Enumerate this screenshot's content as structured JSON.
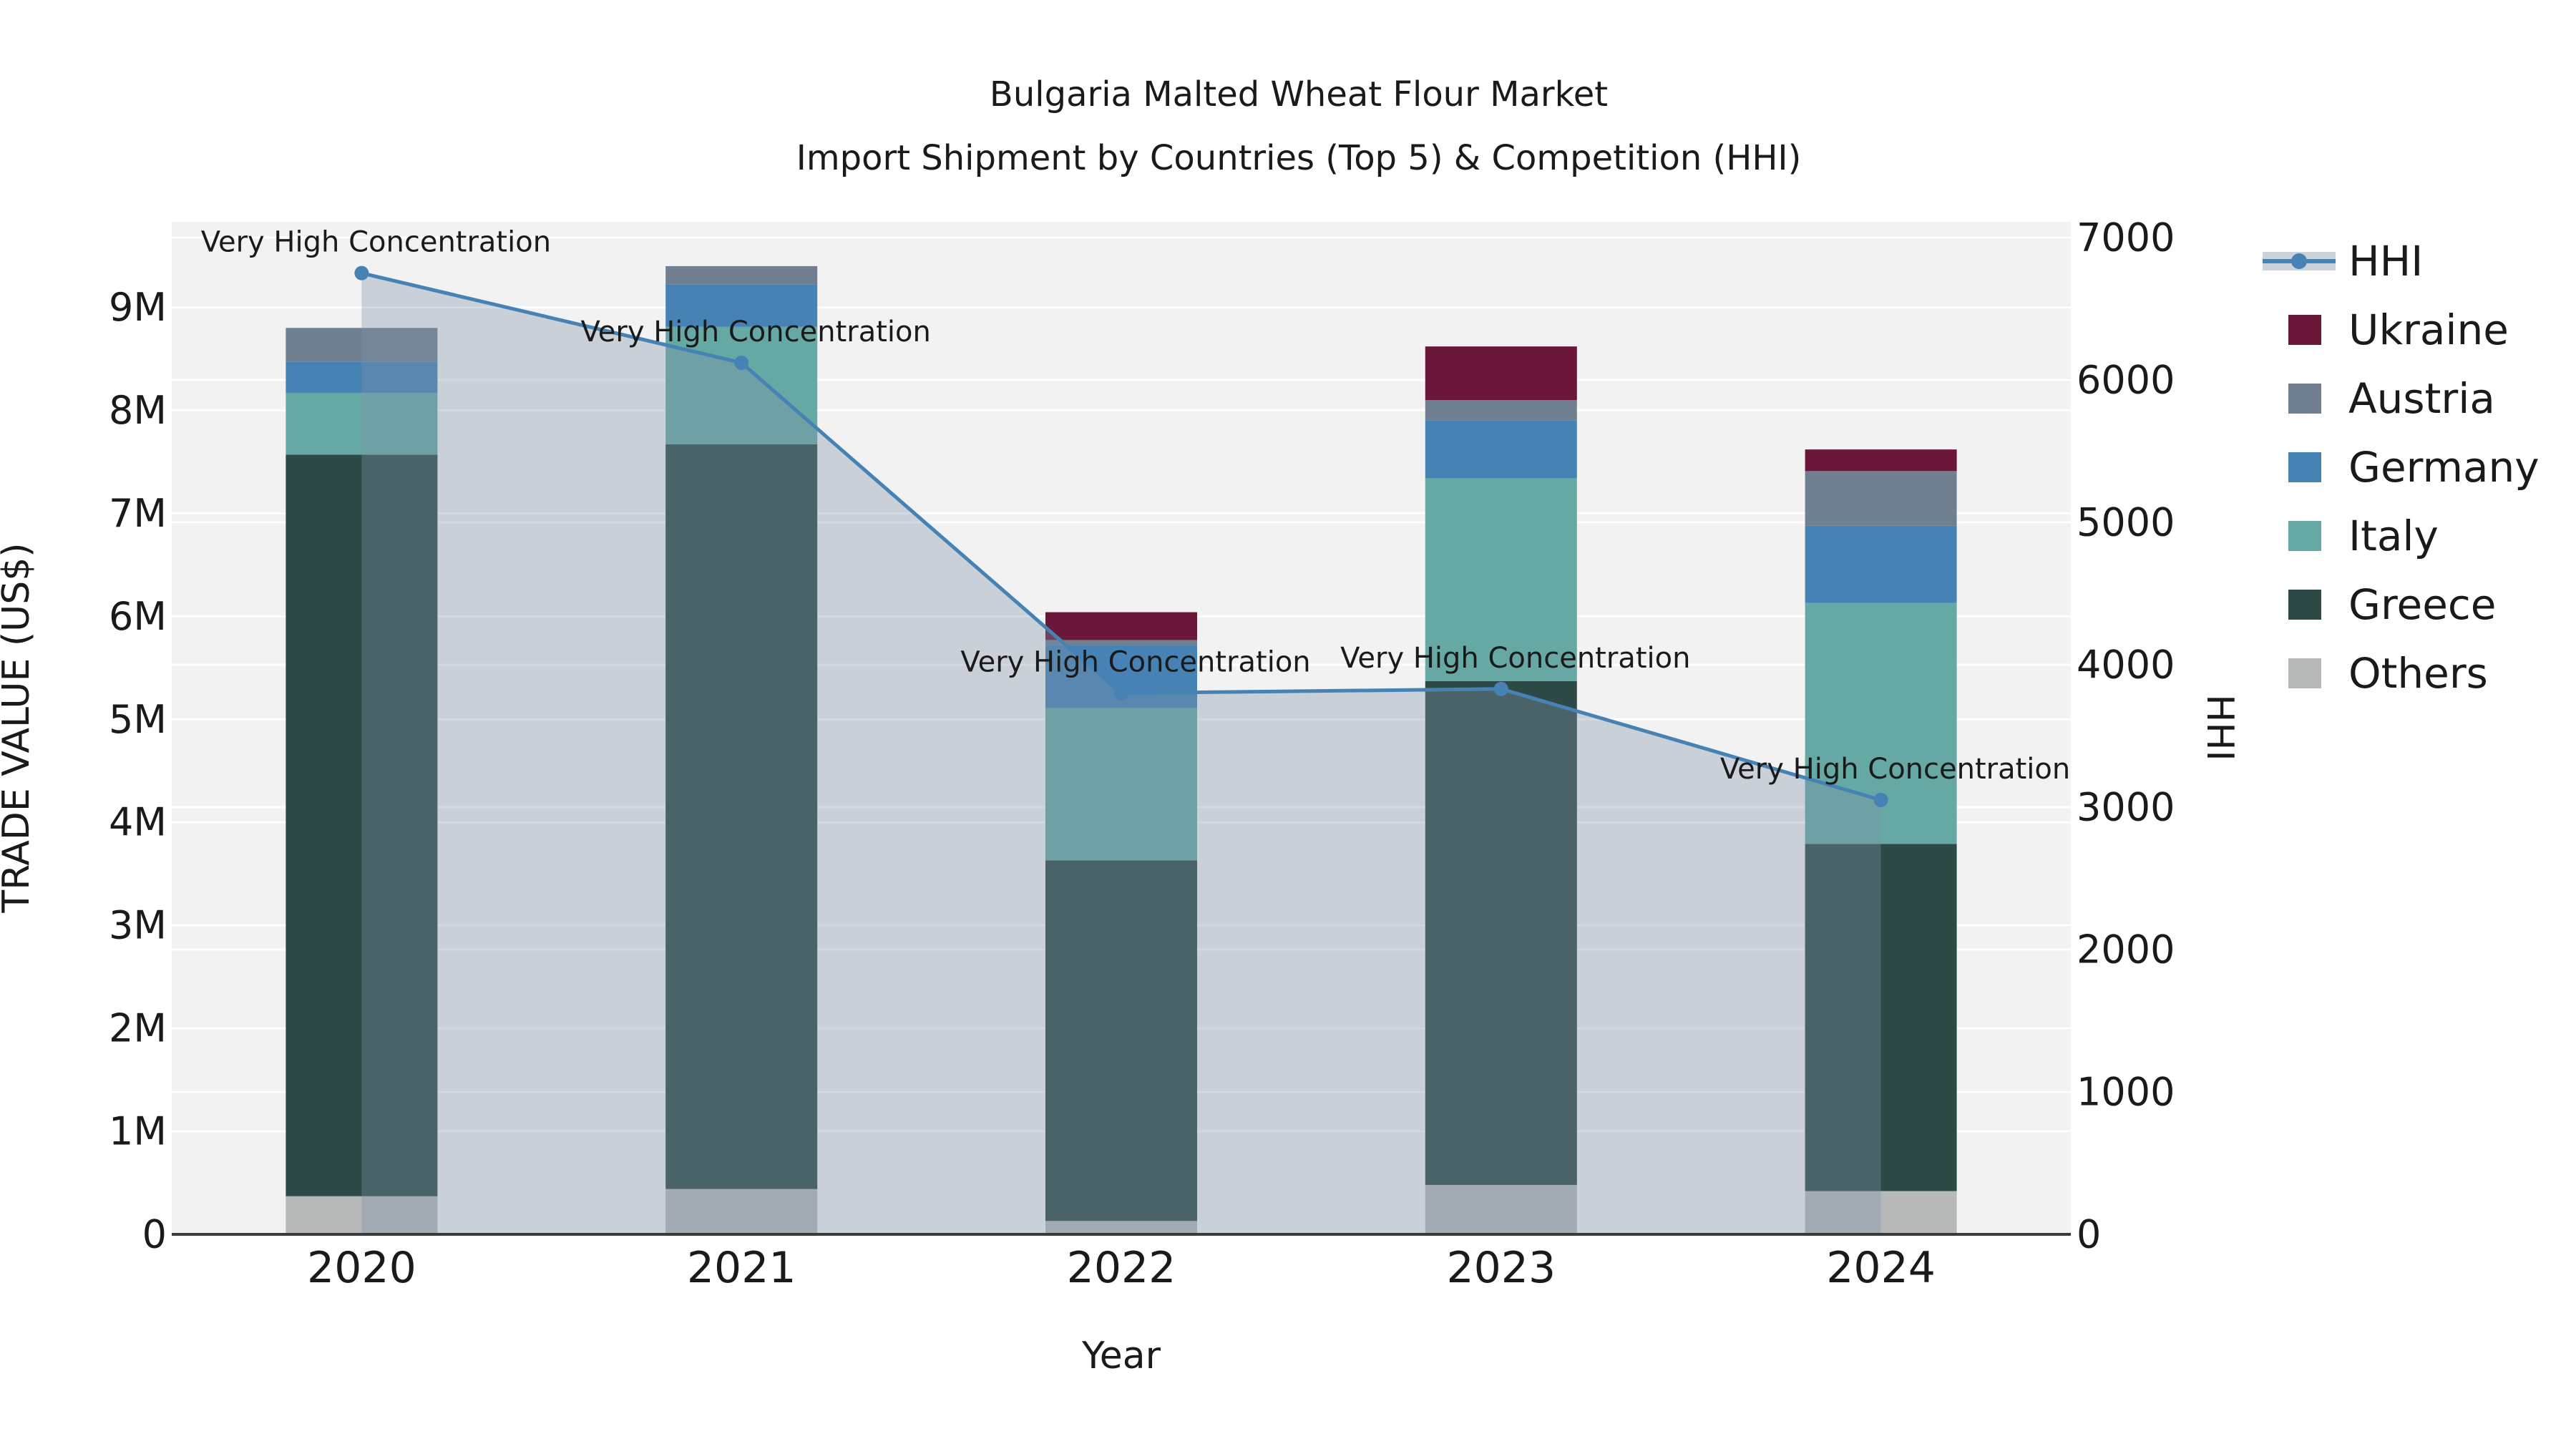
{
  "chart_data": {
    "type": "bar",
    "stacked": true,
    "title": "Bulgaria Malted Wheat Flour Market",
    "subtitle": "Import Shipment by Countries (Top 5) & Competition (HHI)",
    "xlabel": "Year",
    "ylabel": "TRADE VALUE (US$)",
    "y2label": "HHI",
    "categories": [
      "2020",
      "2021",
      "2022",
      "2023",
      "2024"
    ],
    "series": [
      {
        "name": "Others",
        "color": "#b6b9b7",
        "values": [
          370000,
          440000,
          130000,
          480000,
          420000
        ]
      },
      {
        "name": "Greece",
        "color": "#2d4a47",
        "values": [
          7200000,
          7230000,
          3500000,
          4890000,
          3370000
        ]
      },
      {
        "name": "Italy",
        "color": "#66a8a4",
        "values": [
          600000,
          1140000,
          1480000,
          1970000,
          2340000
        ]
      },
      {
        "name": "Germany",
        "color": "#4682b4",
        "values": [
          300000,
          410000,
          610000,
          560000,
          750000
        ]
      },
      {
        "name": "Austria",
        "color": "#708090",
        "values": [
          330000,
          180000,
          50000,
          200000,
          530000
        ]
      },
      {
        "name": "Ukraine",
        "color": "#6a173a",
        "values": [
          0,
          0,
          270000,
          520000,
          210000
        ]
      }
    ],
    "line_series": {
      "name": "HHI",
      "color": "#4682b4",
      "fill": "rgba(126,146,168,0.35)",
      "values": [
        6750,
        6120,
        3800,
        3830,
        3050
      ]
    },
    "annotations": [
      "Very High Concentration",
      "Very High Concentration",
      "Very High Concentration",
      "Very High Concentration",
      "Very High Concentration"
    ],
    "yticks": {
      "labels": [
        "0",
        "1M",
        "2M",
        "3M",
        "4M",
        "5M",
        "6M",
        "7M",
        "8M",
        "9M"
      ],
      "values": [
        0,
        1000000,
        2000000,
        3000000,
        4000000,
        5000000,
        6000000,
        7000000,
        8000000,
        9000000
      ]
    },
    "y2ticks": {
      "labels": [
        "0",
        "1000",
        "2000",
        "3000",
        "4000",
        "5000",
        "6000",
        "7000"
      ],
      "values": [
        0,
        1000,
        2000,
        3000,
        4000,
        5000,
        6000,
        7000
      ]
    },
    "ylim": [
      0,
      9830000
    ],
    "y2lim": [
      0,
      7110
    ],
    "grid": true,
    "legend_position": "right",
    "legend": [
      "HHI",
      "Ukraine",
      "Austria",
      "Germany",
      "Italy",
      "Greece",
      "Others"
    ],
    "colors": {
      "figure_background": "#ffffff",
      "plot_background": "#f2f2f2",
      "gridline": "#ffffff",
      "axis_line": "#3a3a3a",
      "text": "#1a1a1a",
      "hhi_legend_band": "#ccd2da"
    }
  }
}
